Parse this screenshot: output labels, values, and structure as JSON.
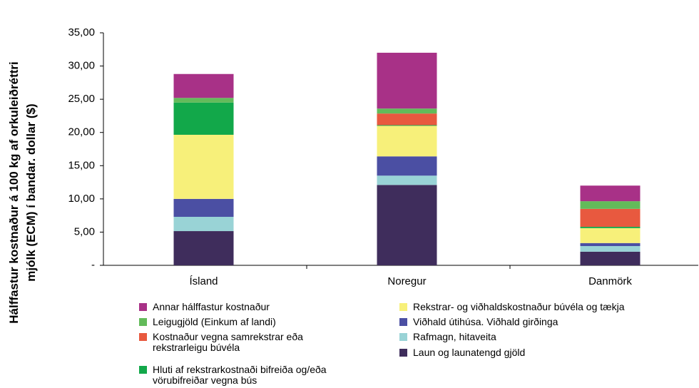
{
  "chart_data": {
    "type": "stacked_bar",
    "ylabel": "Hálffastur kostnaður á 100 kg af orkuleiðréttri mjólk (ECM) í bandar. dollar ($)",
    "categories": [
      "Ísland",
      "Noregur",
      "Danmörk"
    ],
    "series": [
      {
        "name": "Laun og launatengd gjöld",
        "color": "#3f2d5c",
        "values": [
          5.15,
          12.1,
          2.05
        ]
      },
      {
        "name": "Rafmagn, hitaveita",
        "color": "#99d3d6",
        "values": [
          2.15,
          1.4,
          0.85
        ]
      },
      {
        "name": "Viðhald útihúsa. Viðhald girðinga",
        "color": "#4b4fa3",
        "values": [
          2.7,
          2.9,
          0.45
        ]
      },
      {
        "name": "Rekstrar- og viðhaldskostnaður búvéla og tækja",
        "color": "#f7f07a",
        "values": [
          9.65,
          4.6,
          2.25
        ]
      },
      {
        "name": "Hluti af rekstrarkostnaði bifreiða og/eða vörubifreiðar vegna bús",
        "color": "#12a84a",
        "values": [
          4.85,
          0.1,
          0.2
        ]
      },
      {
        "name": "Kostnaður vegna samrekstrar eða rekstrarleigu búvéla",
        "color": "#e8593f",
        "values": [
          0,
          1.75,
          2.7
        ]
      },
      {
        "name": "Leigugjöld (Einkum af landi)",
        "color": "#63bb5a",
        "values": [
          0.7,
          0.75,
          1.15
        ]
      },
      {
        "name": "Annar hálffastur kostnaður",
        "color": "#a83187",
        "values": [
          3.6,
          8.4,
          2.35
        ]
      }
    ],
    "ylim": [
      0,
      35
    ],
    "yticks": [
      {
        "value": 0,
        "label": "-"
      },
      {
        "value": 5,
        "label": "5,00"
      },
      {
        "value": 10,
        "label": "10,00"
      },
      {
        "value": 15,
        "label": "15,00"
      },
      {
        "value": 20,
        "label": "20,00"
      },
      {
        "value": 25,
        "label": "25,00"
      },
      {
        "value": 30,
        "label": "30,00"
      },
      {
        "value": 35,
        "label": "35,00"
      }
    ]
  }
}
